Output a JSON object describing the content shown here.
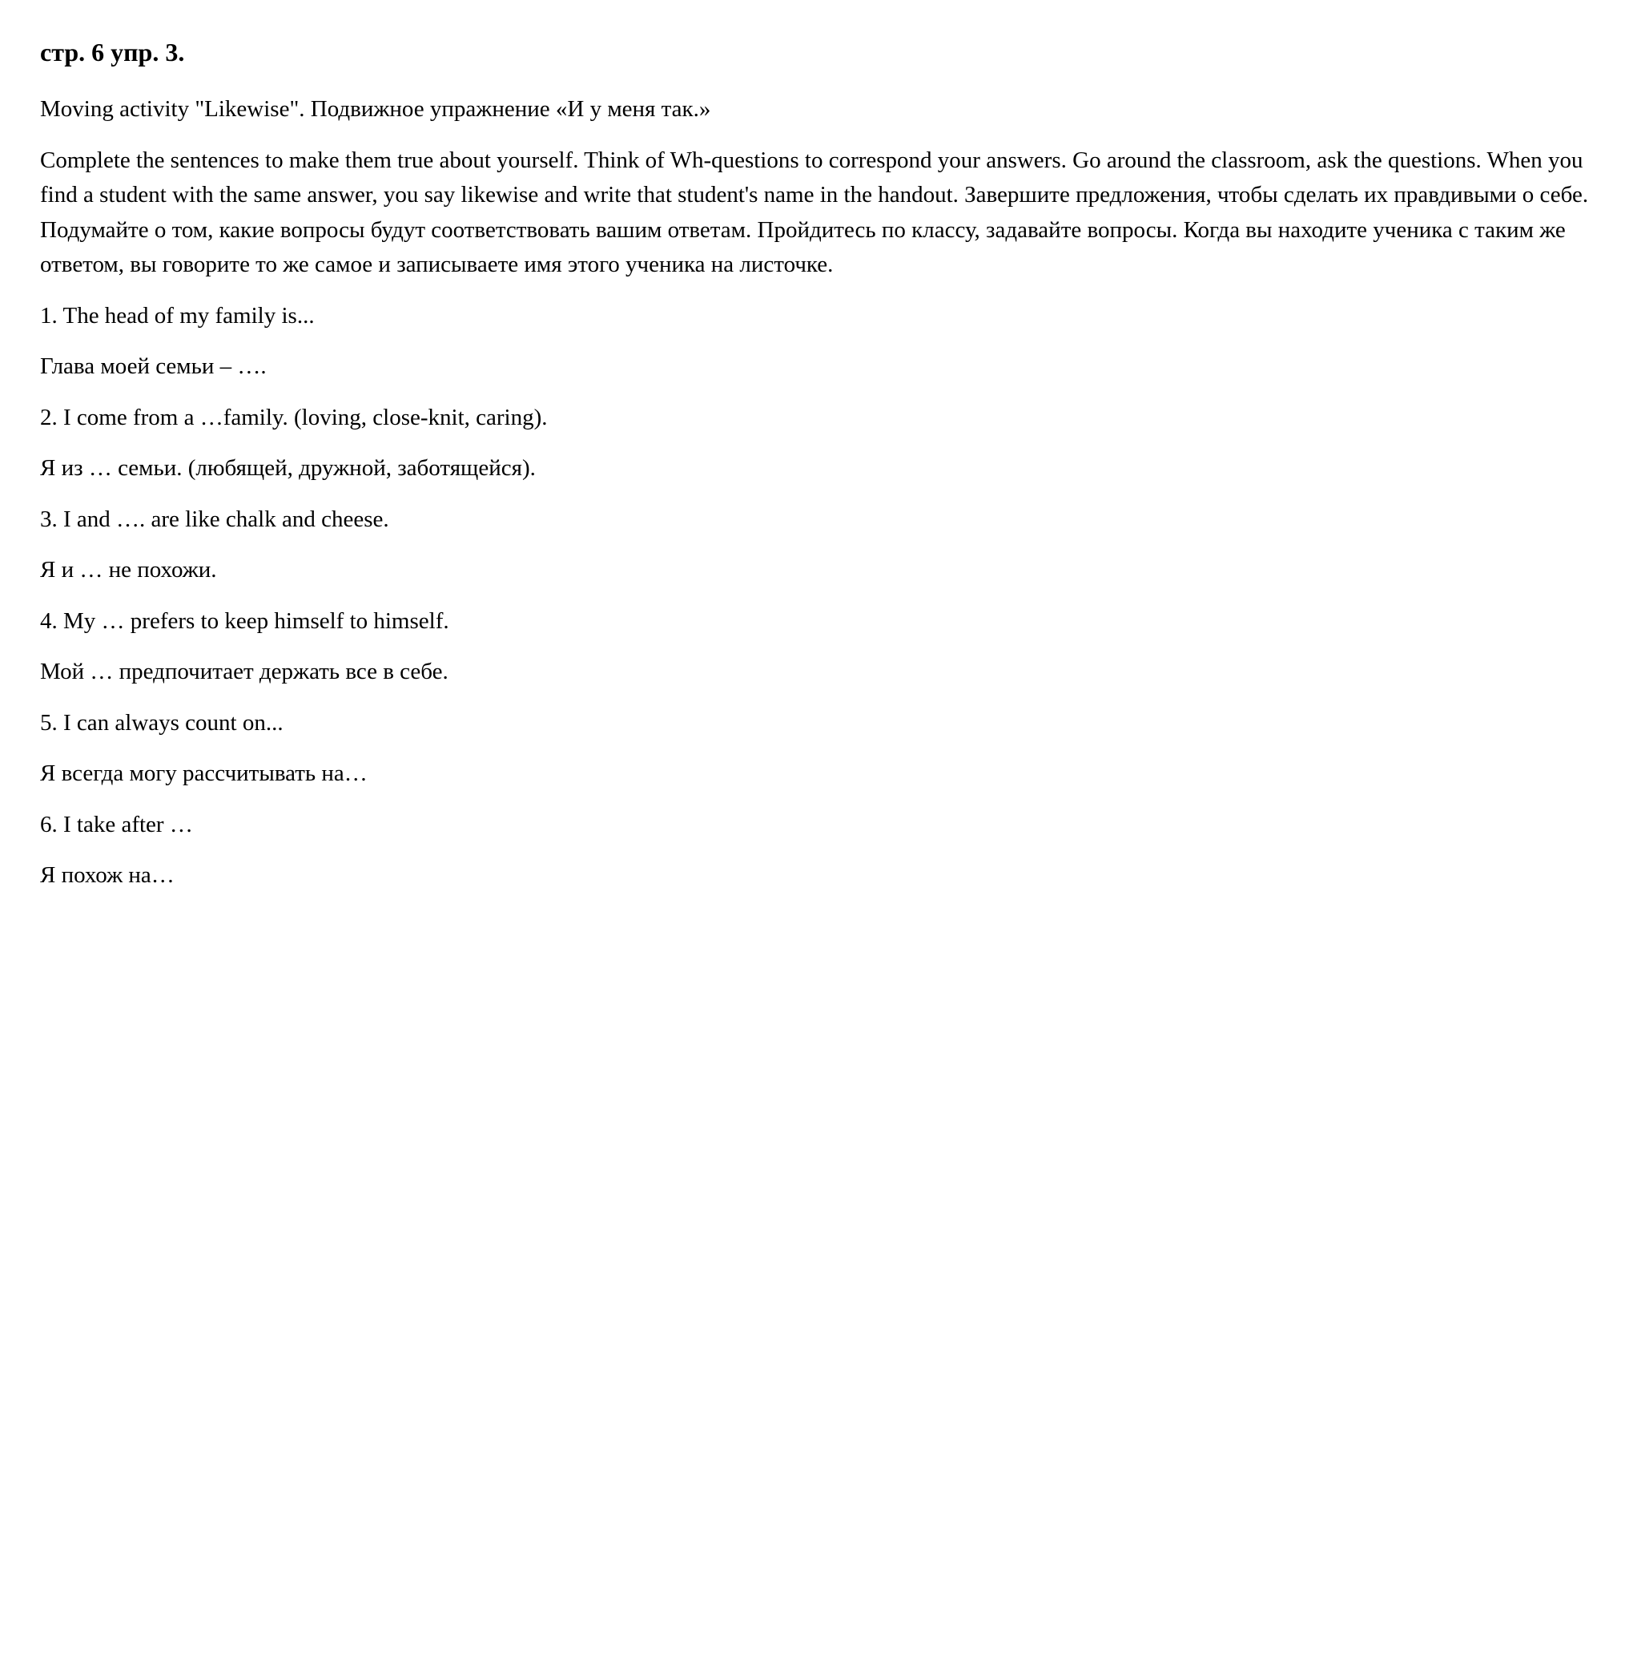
{
  "heading": "стр. 6 упр. 3.",
  "intro_en": "Moving activity \"Likewise\". Подвижное упражнение «И у меня так.»",
  "instructions": "Complete the sentences to make them true about yourself. Think of Wh-questions to correspond your answers. Go around the classroom, ask the questions. When you find a student with the same answer, you say likewise and write that student's name in the handout. Завершите предложения, чтобы сделать их правдивыми о себе. Подумайте о том, какие вопросы будут соответствовать вашим ответам. Пройдитесь по классу, задавайте вопросы. Когда вы находите ученика с таким же ответом, вы говорите то же самое и записываете имя этого ученика на листочке.",
  "items": [
    {
      "en": "1. The head of my family is...",
      "ru": "Глава моей семьи – …."
    },
    {
      "en": "2. I come from a …family. (loving, close-knit, caring).",
      "ru": "Я из … семьи. (любящей, дружной, заботящейся)."
    },
    {
      "en": "3. I and …. are like chalk and cheese.",
      "ru": "Я и … не похожи."
    },
    {
      "en": "4. My … prefers to keep himself to himself.",
      "ru": "Мой … предпочитает держать все в себе."
    },
    {
      "en": "5. I can always count on...",
      "ru": "Я всегда могу рассчитывать на…"
    },
    {
      "en": "6. I take after …",
      "ru": "Я похож на…"
    }
  ]
}
